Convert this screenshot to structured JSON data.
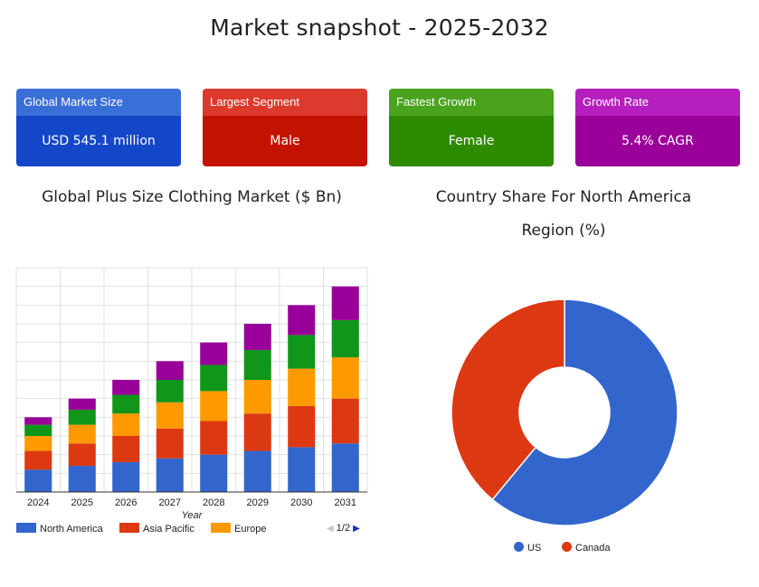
{
  "page_title": "Market snapshot - 2025-2032",
  "cards": [
    {
      "label": "Global Market Size",
      "value": "USD 545.1 million",
      "head_color": "#3a6fd8",
      "body_color": "#1447c8"
    },
    {
      "label": "Largest Segment",
      "value": "Male",
      "head_color": "#db3a2c",
      "body_color": "#c41200"
    },
    {
      "label": "Fastest Growth",
      "value": "Female",
      "head_color": "#49a31d",
      "body_color": "#2e8b00"
    },
    {
      "label": "Growth Rate",
      "value": "5.4% CAGR",
      "head_color": "#b51fbd",
      "body_color": "#9a0099"
    }
  ],
  "bar_chart_title": "Global Plus Size Clothing Market ($ Bn)",
  "pie_chart_title": "Country Share For North America Region (%)",
  "legend_pager": "1/2",
  "chart_data": [
    {
      "type": "bar",
      "stacked": true,
      "title": "Global Plus Size Clothing Market ($ Bn)",
      "xlabel": "Year",
      "ylabel": "",
      "categories": [
        "2024",
        "2025",
        "2026",
        "2027",
        "2028",
        "2029",
        "2030",
        "2031"
      ],
      "ylim": [
        0,
        12
      ],
      "grid": true,
      "legend_position": "bottom",
      "series": [
        {
          "name": "North America",
          "color": "#3366cc",
          "values": [
            1.2,
            1.4,
            1.6,
            1.8,
            2.0,
            2.2,
            2.4,
            2.6
          ]
        },
        {
          "name": "Asia Pacific",
          "color": "#dc3912",
          "values": [
            1.0,
            1.2,
            1.4,
            1.6,
            1.8,
            2.0,
            2.2,
            2.4
          ]
        },
        {
          "name": "Europe",
          "color": "#ff9900",
          "values": [
            0.8,
            1.0,
            1.2,
            1.4,
            1.6,
            1.8,
            2.0,
            2.2
          ]
        },
        {
          "name": "",
          "color": "#109618",
          "values": [
            0.6,
            0.8,
            1.0,
            1.2,
            1.4,
            1.6,
            1.8,
            2.0
          ]
        },
        {
          "name": "",
          "color": "#990099",
          "values": [
            0.4,
            0.6,
            0.8,
            1.0,
            1.2,
            1.4,
            1.6,
            1.8
          ]
        }
      ]
    },
    {
      "type": "pie",
      "donut": true,
      "title": "Country Share For North America Region (%)",
      "legend_position": "bottom",
      "categories": [
        "US",
        "Canada"
      ],
      "values": [
        61,
        39
      ],
      "colors": [
        "#3366cc",
        "#dc3912"
      ]
    }
  ]
}
